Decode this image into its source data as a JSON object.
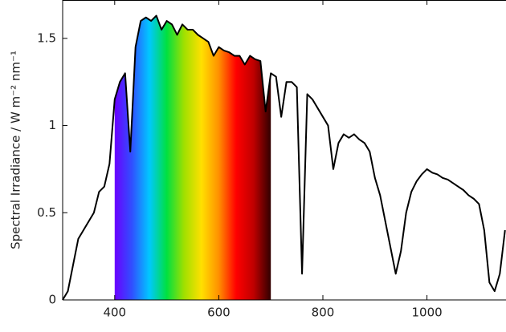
{
  "chart_data": {
    "type": "line",
    "y_label": "Spectral Irradiance / W m⁻² nm⁻¹",
    "x": [
      300,
      310,
      320,
      330,
      340,
      350,
      360,
      370,
      380,
      390,
      400,
      410,
      420,
      430,
      440,
      450,
      460,
      470,
      480,
      490,
      500,
      510,
      520,
      530,
      540,
      550,
      560,
      570,
      580,
      590,
      600,
      610,
      620,
      630,
      640,
      650,
      660,
      670,
      680,
      690,
      700,
      710,
      720,
      730,
      740,
      750,
      760,
      770,
      780,
      790,
      800,
      810,
      820,
      830,
      840,
      850,
      860,
      870,
      880,
      890,
      900,
      910,
      920,
      930,
      940,
      950,
      960,
      970,
      980,
      990,
      1000,
      1010,
      1020,
      1030,
      1040,
      1050,
      1060,
      1070,
      1080,
      1090,
      1100,
      1110,
      1120,
      1130,
      1140,
      1150
    ],
    "series": [
      {
        "color": "#000000",
        "values": [
          0.0,
          0.05,
          0.2,
          0.35,
          0.4,
          0.45,
          0.5,
          0.62,
          0.65,
          0.78,
          1.15,
          1.25,
          1.3,
          0.85,
          1.45,
          1.6,
          1.62,
          1.6,
          1.63,
          1.55,
          1.6,
          1.58,
          1.52,
          1.58,
          1.55,
          1.55,
          1.52,
          1.5,
          1.48,
          1.4,
          1.45,
          1.43,
          1.42,
          1.4,
          1.4,
          1.35,
          1.4,
          1.38,
          1.37,
          1.08,
          1.3,
          1.28,
          1.05,
          1.25,
          1.25,
          1.22,
          0.15,
          1.18,
          1.15,
          1.1,
          1.05,
          1.0,
          0.75,
          0.9,
          0.95,
          0.93,
          0.95,
          0.92,
          0.9,
          0.85,
          0.7,
          0.6,
          0.45,
          0.3,
          0.15,
          0.28,
          0.5,
          0.62,
          0.68,
          0.72,
          0.75,
          0.73,
          0.72,
          0.7,
          0.69,
          0.67,
          0.65,
          0.63,
          0.6,
          0.58,
          0.55,
          0.4,
          0.1,
          0.05,
          0.15,
          0.4
        ]
      }
    ],
    "highlight_range": [
      400,
      700
    ],
    "highlight_colors": [
      "#6a00ff",
      "#3050ff",
      "#00c8ff",
      "#00e040",
      "#a0e000",
      "#ffe000",
      "#ff9000",
      "#ff0000",
      "#c00000",
      "#300000"
    ],
    "xlim": [
      300,
      1150
    ],
    "xticks": [
      400,
      600,
      800,
      1000
    ],
    "ylim": [
      0,
      1.72
    ],
    "yticks": [
      0,
      0.5,
      1,
      1.5
    ]
  }
}
